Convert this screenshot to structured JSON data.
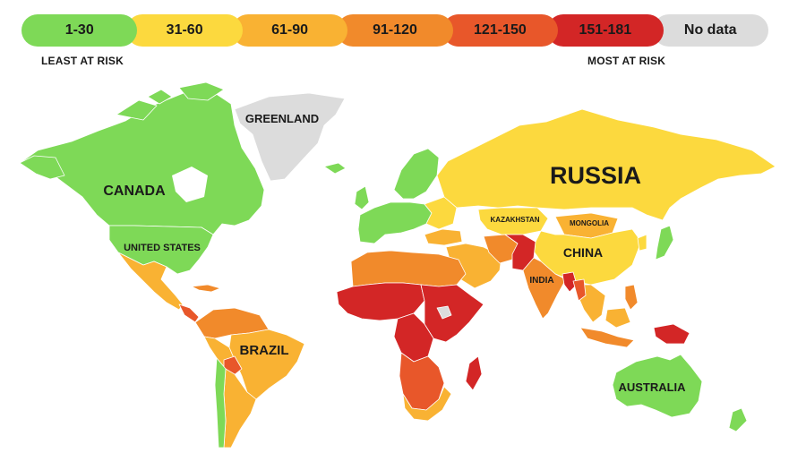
{
  "legend": {
    "items": [
      {
        "label": "1-30",
        "color": "#7ed957"
      },
      {
        "label": "31-60",
        "color": "#fcd93e"
      },
      {
        "label": "61-90",
        "color": "#f9b233"
      },
      {
        "label": "91-120",
        "color": "#f18a2b"
      },
      {
        "label": "121-150",
        "color": "#e8572a"
      },
      {
        "label": "151-181",
        "color": "#d32626"
      },
      {
        "label": "No data",
        "color": "#dcdcdc"
      }
    ],
    "least_label": "LEAST AT RISK",
    "most_label": "MOST AT RISK"
  },
  "map": {
    "labels": {
      "greenland": "GREENLAND",
      "canada": "CANADA",
      "united_states": "UNITED STATES",
      "brazil": "BRAZIL",
      "russia": "RUSSIA",
      "kazakhstan": "KAZAKHSTAN",
      "mongolia": "MONGOLIA",
      "china": "CHINA",
      "india": "INDIA",
      "australia": "AUSTRALIA"
    },
    "colors": {
      "green": "#7ed957",
      "yellow": "#fcd93e",
      "light_orange": "#f9b233",
      "orange": "#f18a2b",
      "red_orange": "#e8572a",
      "red": "#d32626",
      "no_data": "#dcdcdc"
    }
  }
}
